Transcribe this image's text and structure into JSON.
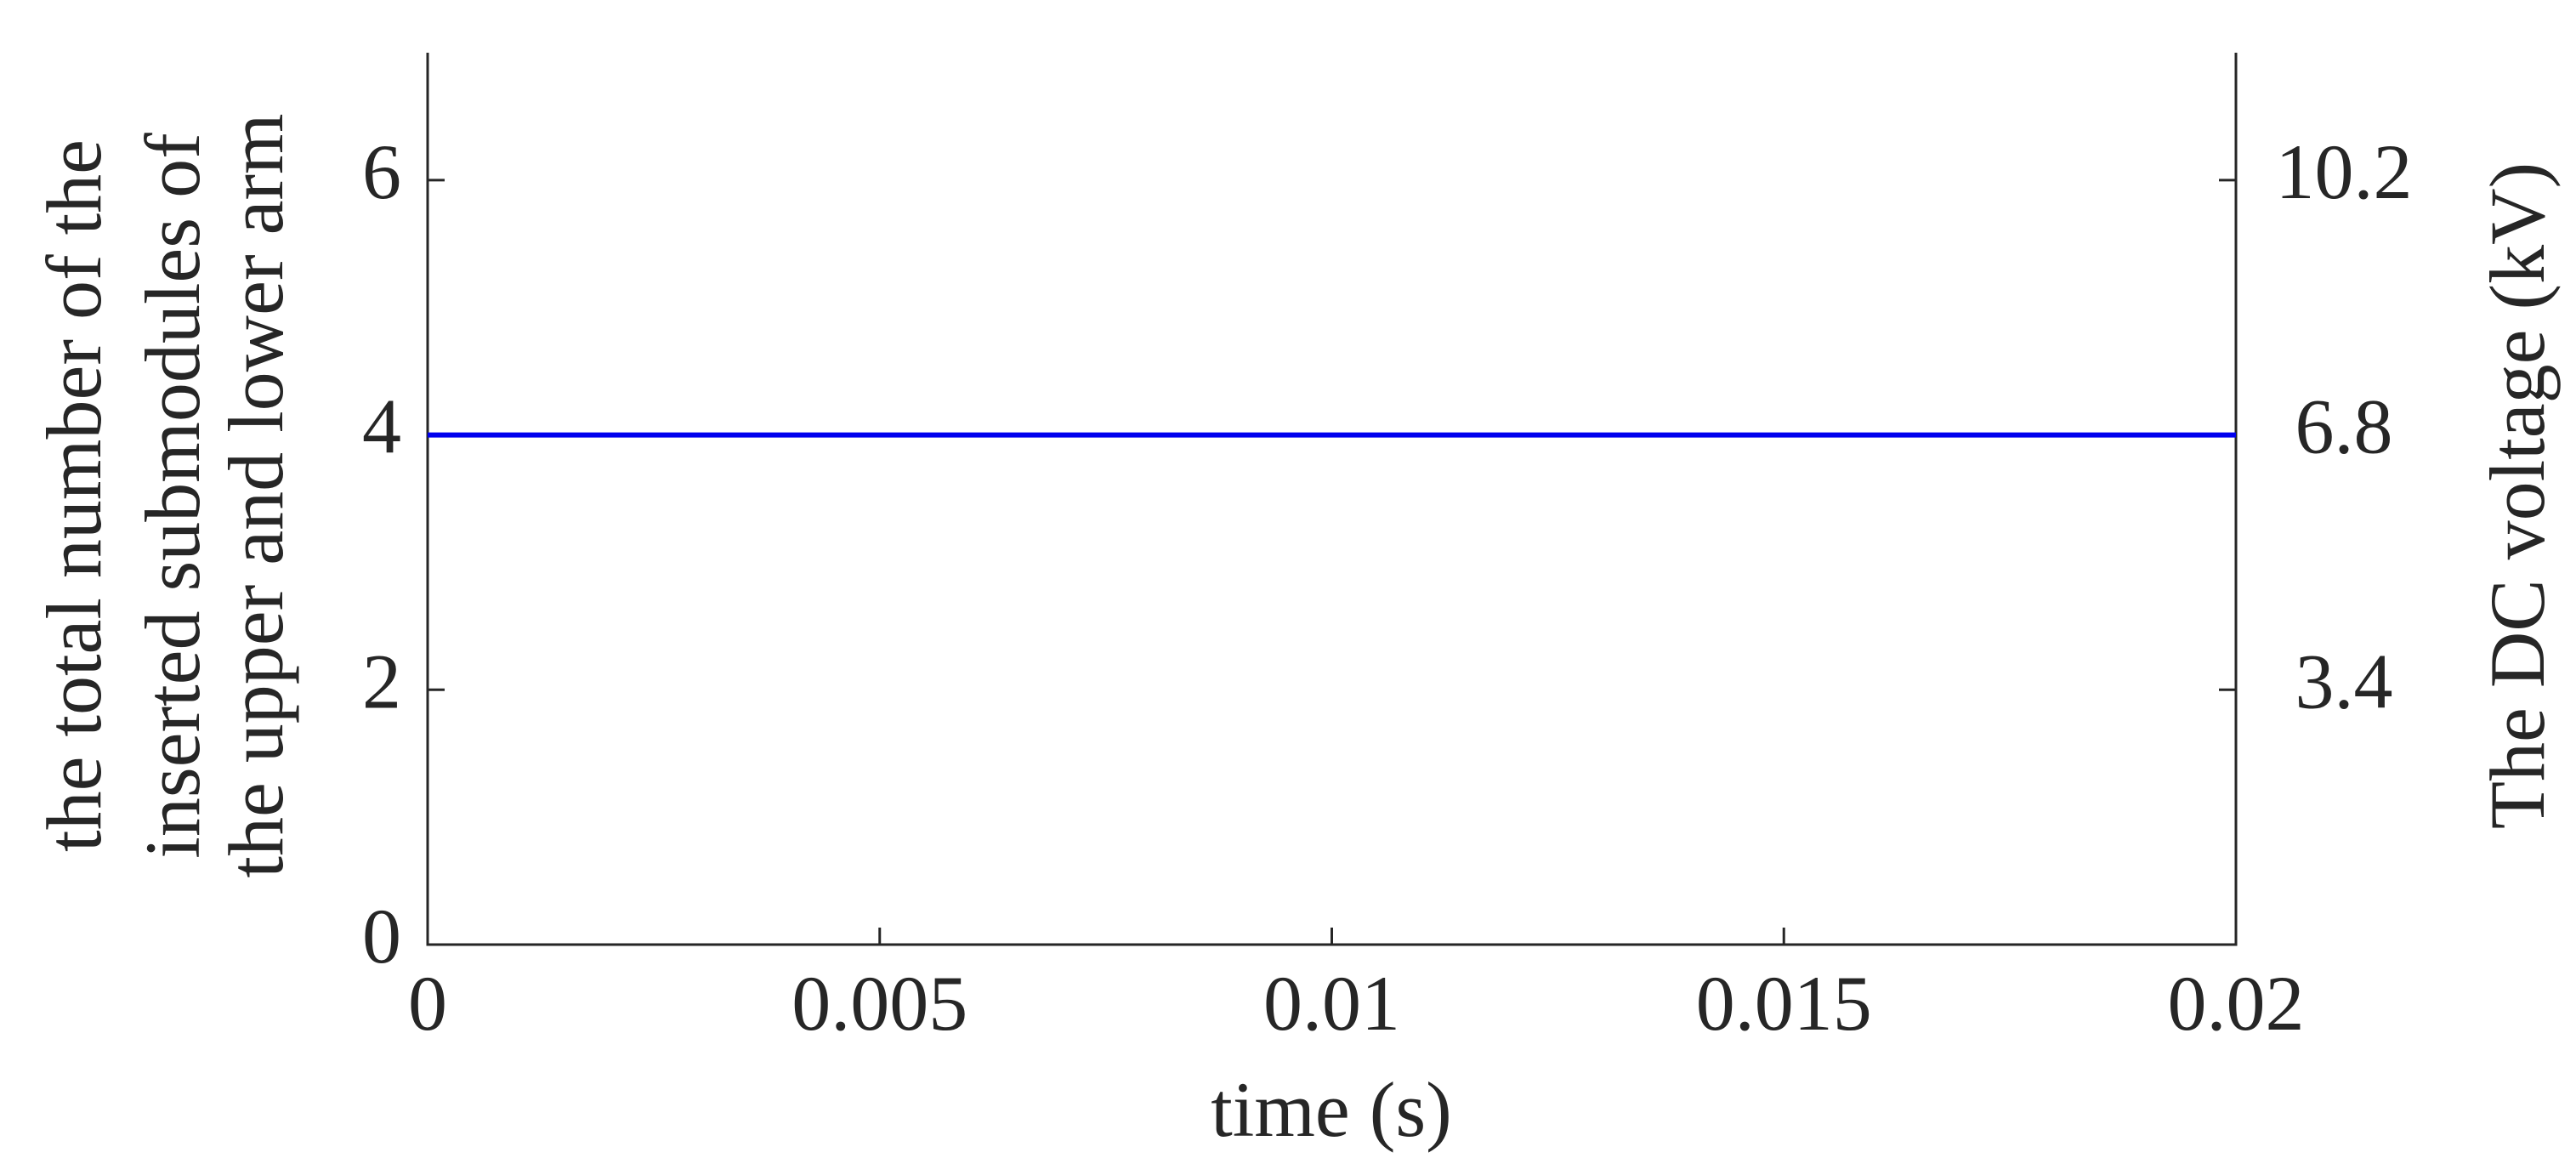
{
  "chart_data": {
    "type": "line",
    "x": [
      0,
      0.02
    ],
    "series": [
      {
        "color": "#0000ee",
        "values": [
          4,
          4
        ]
      }
    ],
    "xlim": [
      0,
      0.02
    ],
    "xticks": [
      0,
      0.005,
      0.01,
      0.015,
      0.02
    ],
    "ylim": [
      0,
      7
    ],
    "yticks": [
      0,
      2,
      4,
      6
    ],
    "y2lim": [
      0,
      11.9
    ],
    "y2ticks": [
      3.4,
      6.8,
      10.2
    ],
    "x_label": "time (s)",
    "y_label": [
      "the total number of the",
      "inserted submodules of",
      "the upper and lower arm"
    ],
    "y2_label": "The DC voltage (kV)",
    "grid": false
  }
}
